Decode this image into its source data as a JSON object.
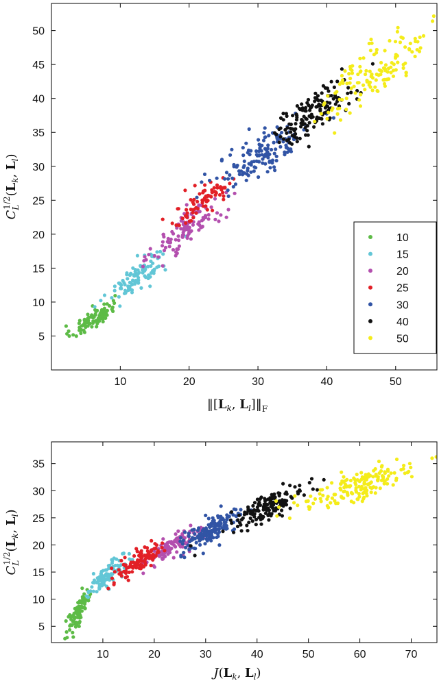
{
  "chart_data": [
    {
      "type": "scatter",
      "title": "",
      "xlabel": "||[L_k, L_l]||_F",
      "ylabel": "C_L^{1/2}(L_k, L_l)",
      "xlim": [
        0,
        56
      ],
      "ylim": [
        0,
        54
      ],
      "xticks": [
        10,
        20,
        30,
        40,
        50
      ],
      "yticks": [
        5,
        10,
        15,
        20,
        25,
        30,
        35,
        40,
        45,
        50
      ],
      "legend_position": "bottom-right",
      "legend": [
        "10",
        "15",
        "20",
        "25",
        "30",
        "40",
        "50"
      ],
      "series": [
        {
          "name": "10",
          "color": "#5dbb46",
          "x_center": 6,
          "y_center": 7.5,
          "x_spread": 1.6,
          "y_spread": 1.4,
          "count": 90
        },
        {
          "name": "15",
          "color": "#62c6d6",
          "x_center": 12.5,
          "y_center": 14,
          "x_spread": 2.2,
          "y_spread": 2.0,
          "count": 110
        },
        {
          "name": "20",
          "color": "#b34fae",
          "x_center": 20,
          "y_center": 21,
          "x_spread": 2.6,
          "y_spread": 2.4,
          "count": 110
        },
        {
          "name": "25",
          "color": "#e21f26",
          "x_center": 22,
          "y_center": 25,
          "x_spread": 2.4,
          "y_spread": 2.0,
          "count": 80
        },
        {
          "name": "30",
          "color": "#3154a5",
          "x_center": 31,
          "y_center": 32,
          "x_spread": 3.4,
          "y_spread": 3.0,
          "count": 150
        },
        {
          "name": "40",
          "color": "#111111",
          "x_center": 38,
          "y_center": 38,
          "x_spread": 3.0,
          "y_spread": 2.6,
          "count": 150
        },
        {
          "name": "50",
          "color": "#f4ec1a",
          "x_center": 47,
          "y_center": 44,
          "x_spread": 3.8,
          "y_spread": 3.6,
          "count": 140
        }
      ]
    },
    {
      "type": "scatter",
      "title": "",
      "xlabel": "J(L_k, L_l)",
      "ylabel": "C_L^{1/2}(L_k, L_l)",
      "xlim": [
        0,
        75
      ],
      "ylim": [
        2,
        39
      ],
      "xticks": [
        10,
        20,
        30,
        40,
        50,
        60,
        70
      ],
      "yticks": [
        5,
        10,
        15,
        20,
        25,
        30,
        35
      ],
      "series": [
        {
          "name": "10",
          "color": "#5dbb46",
          "x_center": 5.5,
          "y_center": 8,
          "x_spread": 1.3,
          "y_spread": 2.2,
          "count": 90
        },
        {
          "name": "15",
          "color": "#62c6d6",
          "x_center": 10.5,
          "y_center": 14,
          "x_spread": 1.8,
          "y_spread": 1.8,
          "count": 110
        },
        {
          "name": "20",
          "color": "#b34fae",
          "x_center": 24,
          "y_center": 20,
          "x_spread": 2.8,
          "y_spread": 1.8,
          "count": 110
        },
        {
          "name": "25",
          "color": "#e21f26",
          "x_center": 17,
          "y_center": 17,
          "x_spread": 2.4,
          "y_spread": 1.8,
          "count": 110
        },
        {
          "name": "30",
          "color": "#3154a5",
          "x_center": 31,
          "y_center": 22.5,
          "x_spread": 3.0,
          "y_spread": 2.0,
          "count": 150
        },
        {
          "name": "40",
          "color": "#111111",
          "x_center": 42,
          "y_center": 27,
          "x_spread": 3.6,
          "y_spread": 2.0,
          "count": 150
        },
        {
          "name": "50",
          "color": "#f4ec1a",
          "x_center": 60,
          "y_center": 31,
          "x_spread": 6.0,
          "y_spread": 2.5,
          "count": 170
        }
      ]
    }
  ]
}
